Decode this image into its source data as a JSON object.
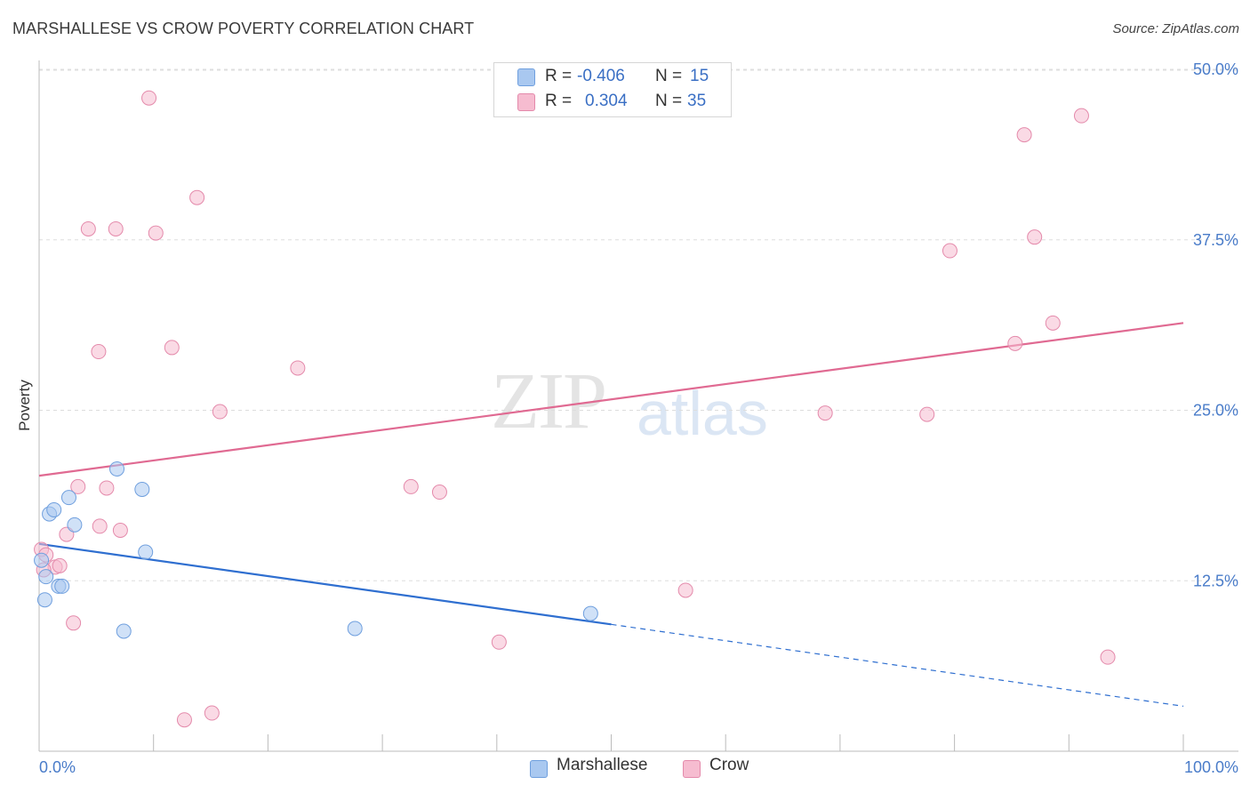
{
  "header": {
    "title": "MARSHALLESE VS CROW POVERTY CORRELATION CHART",
    "source": "Source: ZipAtlas.com"
  },
  "watermark": {
    "zip": "ZIP",
    "atlas": "atlas"
  },
  "legend": {
    "rows": [
      {
        "r_label": "R =",
        "r_value": "-0.406",
        "n_label": "N =",
        "n_value": "15",
        "color": "#a9c8f0",
        "border": "#6f9fde"
      },
      {
        "r_label": "R =",
        "r_value": "0.304",
        "n_label": "N =",
        "n_value": "35",
        "color": "#f6bcd0",
        "border": "#e48aab"
      }
    ]
  },
  "bottom_legend": {
    "items": [
      {
        "label": "Marshallese",
        "color": "#a9c8f0",
        "border": "#6f9fde"
      },
      {
        "label": "Crow",
        "color": "#f6bcd0",
        "border": "#e48aab"
      }
    ]
  },
  "chart_data": {
    "type": "scatter",
    "title": "MARSHALLESE VS CROW POVERTY CORRELATION CHART",
    "xlabel": "",
    "ylabel": "Poverty",
    "xlim": [
      0,
      100
    ],
    "ylim": [
      0,
      52
    ],
    "x_tick_labels": [
      {
        "value": 0,
        "label": "0.0%"
      },
      {
        "value": 100,
        "label": "100.0%"
      }
    ],
    "x_minor_ticks": [
      0,
      10,
      20,
      30,
      40,
      50,
      60,
      70,
      80,
      90,
      100
    ],
    "y_ticks": [
      {
        "value": 12.5,
        "label": "12.5%"
      },
      {
        "value": 25.0,
        "label": "25.0%"
      },
      {
        "value": 37.5,
        "label": "37.5%"
      },
      {
        "value": 50.0,
        "label": "50.0%"
      }
    ],
    "series": [
      {
        "name": "Marshallese",
        "color": "#a9c8f0",
        "stroke": "#6f9fde",
        "line_color": "#2f6fd0",
        "trend": {
          "x0": 0,
          "y0": 15.2,
          "x1": 50,
          "y1": 9.3,
          "dash_to_x": 100,
          "dash_to_y": 3.3
        },
        "points": [
          [
            0.2,
            14.0
          ],
          [
            0.6,
            12.8
          ],
          [
            0.9,
            17.4
          ],
          [
            1.3,
            17.7
          ],
          [
            1.7,
            12.1
          ],
          [
            2.0,
            12.1
          ],
          [
            2.6,
            18.6
          ],
          [
            3.1,
            16.6
          ],
          [
            0.5,
            11.1
          ],
          [
            6.8,
            20.7
          ],
          [
            9.0,
            19.2
          ],
          [
            9.3,
            14.6
          ],
          [
            7.4,
            8.8
          ],
          [
            27.6,
            9.0
          ],
          [
            48.2,
            10.1
          ]
        ]
      },
      {
        "name": "Crow",
        "color": "#f6bcd0",
        "stroke": "#e48aab",
        "line_color": "#e06a92",
        "trend": {
          "x0": 0,
          "y0": 20.2,
          "x1": 100,
          "y1": 31.4
        },
        "points": [
          [
            0.2,
            14.8
          ],
          [
            0.6,
            14.4
          ],
          [
            1.4,
            13.5
          ],
          [
            1.8,
            13.6
          ],
          [
            2.4,
            15.9
          ],
          [
            3.4,
            19.4
          ],
          [
            3.0,
            9.4
          ],
          [
            4.3,
            38.3
          ],
          [
            5.2,
            29.3
          ],
          [
            5.3,
            16.5
          ],
          [
            5.9,
            19.3
          ],
          [
            6.7,
            38.3
          ],
          [
            7.1,
            16.2
          ],
          [
            9.6,
            47.9
          ],
          [
            10.2,
            38.0
          ],
          [
            11.6,
            29.6
          ],
          [
            12.7,
            2.3
          ],
          [
            13.8,
            40.6
          ],
          [
            15.1,
            2.8
          ],
          [
            15.8,
            24.9
          ],
          [
            22.6,
            28.1
          ],
          [
            32.5,
            19.4
          ],
          [
            35.0,
            19.0
          ],
          [
            40.2,
            8.0
          ],
          [
            56.5,
            11.8
          ],
          [
            68.7,
            24.8
          ],
          [
            77.6,
            24.7
          ],
          [
            79.6,
            36.7
          ],
          [
            85.3,
            29.9
          ],
          [
            86.1,
            45.2
          ],
          [
            87.0,
            37.7
          ],
          [
            88.6,
            31.4
          ],
          [
            91.1,
            46.6
          ],
          [
            93.4,
            6.9
          ],
          [
            0.4,
            13.3
          ]
        ]
      }
    ]
  }
}
